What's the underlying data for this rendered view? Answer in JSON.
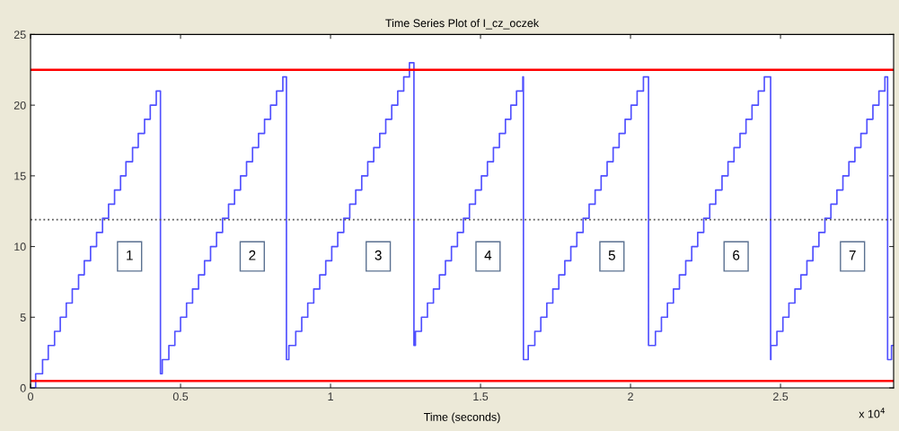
{
  "chart_data": {
    "type": "step",
    "title": "Time Series Plot of I_cz_oczek",
    "xlabel": "Time (seconds)",
    "xlim": [
      0,
      2.877
    ],
    "ylim": [
      0,
      25
    ],
    "xticks": [
      0,
      0.5,
      1,
      1.5,
      2,
      2.5
    ],
    "yticks": [
      0,
      5,
      10,
      15,
      20,
      25
    ],
    "grid": false,
    "series": [
      {
        "color": "#5050ff",
        "x": [
          0,
          0.017,
          0.04,
          0.059,
          0.08,
          0.099,
          0.119,
          0.139,
          0.16,
          0.179,
          0.2,
          0.22,
          0.24,
          0.26,
          0.28,
          0.3,
          0.318,
          0.34,
          0.359,
          0.38,
          0.399,
          0.419,
          0.433,
          0.439,
          0.461,
          0.481,
          0.5,
          0.52,
          0.54,
          0.56,
          0.58,
          0.6,
          0.62,
          0.64,
          0.66,
          0.68,
          0.7,
          0.72,
          0.74,
          0.76,
          0.78,
          0.8,
          0.82,
          0.841,
          0.853,
          0.861,
          0.884,
          0.904,
          0.924,
          0.944,
          0.964,
          0.984,
          1.004,
          1.024,
          1.044,
          1.064,
          1.084,
          1.104,
          1.124,
          1.144,
          1.164,
          1.184,
          1.204,
          1.224,
          1.244,
          1.263,
          1.278,
          1.283,
          1.303,
          1.323,
          1.343,
          1.363,
          1.383,
          1.403,
          1.423,
          1.443,
          1.463,
          1.483,
          1.503,
          1.523,
          1.543,
          1.563,
          1.583,
          1.601,
          1.62,
          1.641,
          1.643,
          1.659,
          1.681,
          1.701,
          1.721,
          1.741,
          1.761,
          1.781,
          1.801,
          1.821,
          1.842,
          1.862,
          1.882,
          1.902,
          1.922,
          1.942,
          1.962,
          1.982,
          2.002,
          2.022,
          2.043,
          2.06,
          2.083,
          2.103,
          2.123,
          2.143,
          2.163,
          2.184,
          2.204,
          2.224,
          2.244,
          2.264,
          2.284,
          2.305,
          2.325,
          2.345,
          2.365,
          2.385,
          2.405,
          2.426,
          2.446,
          2.467,
          2.468,
          2.488,
          2.508,
          2.528,
          2.548,
          2.568,
          2.588,
          2.608,
          2.628,
          2.648,
          2.668,
          2.688,
          2.708,
          2.728,
          2.748,
          2.768,
          2.788,
          2.808,
          2.828,
          2.848,
          2.857,
          2.87,
          2.877
        ],
        "values": [
          0,
          1,
          2,
          3,
          4,
          5,
          6,
          7,
          8,
          9,
          10,
          11,
          12,
          13,
          14,
          15,
          16,
          17,
          18,
          19,
          20,
          21,
          1,
          2,
          3,
          4,
          5,
          6,
          7,
          8,
          9,
          10,
          11,
          12,
          13,
          14,
          15,
          16,
          17,
          18,
          19,
          20,
          21,
          22,
          2,
          3,
          4,
          5,
          6,
          7,
          8,
          9,
          10,
          11,
          12,
          13,
          14,
          15,
          16,
          17,
          18,
          19,
          20,
          21,
          22,
          23,
          3,
          4,
          5,
          6,
          7,
          8,
          9,
          10,
          11,
          12,
          13,
          14,
          15,
          16,
          17,
          18,
          19,
          20,
          21,
          22,
          2,
          3,
          4,
          5,
          6,
          7,
          8,
          9,
          10,
          11,
          12,
          13,
          14,
          15,
          16,
          17,
          18,
          19,
          20,
          21,
          22,
          3,
          4,
          5,
          6,
          7,
          8,
          9,
          10,
          11,
          12,
          13,
          14,
          15,
          16,
          17,
          18,
          19,
          20,
          21,
          22,
          2,
          3,
          4,
          5,
          6,
          7,
          8,
          9,
          10,
          11,
          12,
          13,
          14,
          15,
          16,
          17,
          18,
          19,
          20,
          21,
          22,
          2,
          3,
          3
        ]
      }
    ],
    "ref_lines": [
      {
        "axis": "y",
        "value": 22.5,
        "color": "#ff0000",
        "line_style": "solid"
      },
      {
        "axis": "y",
        "value": 0.5,
        "color": "#ff0000",
        "line_style": "solid"
      },
      {
        "axis": "y",
        "value": 11.9,
        "color": "#555555",
        "line_style": "dotted"
      }
    ],
    "annotations": [
      {
        "text": "1",
        "x": 0.33,
        "y": 9.3
      },
      {
        "text": "2",
        "x": 0.739,
        "y": 9.3
      },
      {
        "text": "3",
        "x": 1.159,
        "y": 9.3
      },
      {
        "text": "4",
        "x": 1.525,
        "y": 9.3
      },
      {
        "text": "5",
        "x": 1.938,
        "y": 9.3
      },
      {
        "text": "6",
        "x": 2.352,
        "y": 9.3
      },
      {
        "text": "7",
        "x": 2.74,
        "y": 9.3
      },
      "x 10$^{4}$"
    ]
  }
}
